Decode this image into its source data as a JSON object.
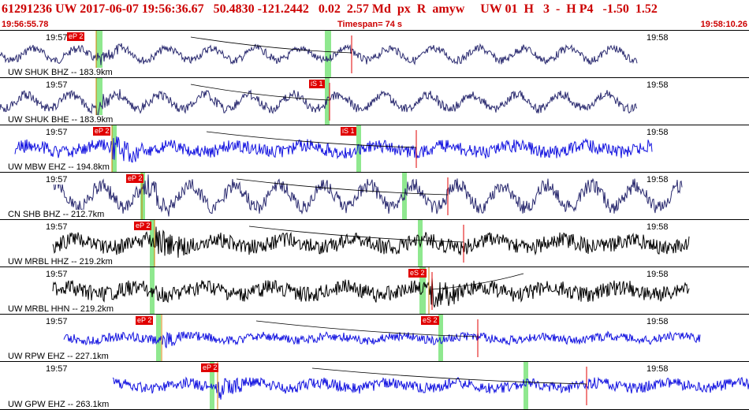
{
  "header": {
    "title": "61291236 UW 2017-06-07 19:56:36.67   50.4830 -121.2442   0.02  2.57 Md  px  R  amyw     UW 01  H   3  -  H P4   -1.50  1.52",
    "start_time": "19:56:55.78",
    "timespan": "Timespan=  74 s",
    "end_time": "19:58:10.26"
  },
  "traces": [
    {
      "station_label": "UW SHUK BHZ -- 183.9km",
      "color": "#2b2b70",
      "style": "smooth",
      "start": 0.0,
      "end": 0.85,
      "amp": 11,
      "ticks": [
        "19:57",
        "19:58"
      ],
      "picks": [
        {
          "label": "eP 2"
        }
      ]
    },
    {
      "station_label": "UW SHUK BHE -- 183.9km",
      "color": "#2b2b70",
      "style": "smooth",
      "start": 0.0,
      "end": 0.85,
      "amp": 13,
      "ticks": [
        "19:57",
        "19:58"
      ],
      "picks": [
        {
          "label": "iS 1"
        }
      ]
    },
    {
      "station_label": "UW MBW EHZ -- 194.8km",
      "color": "#1414e0",
      "style": "noisy",
      "start": 0.02,
      "end": 0.87,
      "amp": 12,
      "ticks": [
        "19:57",
        "19:58"
      ],
      "picks": [
        {
          "label": "eP 2"
        },
        {
          "label": "iS 1"
        }
      ]
    },
    {
      "station_label": "CN SHB BHZ -- 212.7km",
      "color": "#2b2b70",
      "style": "smooth",
      "start": 0.07,
      "end": 0.91,
      "amp": 20,
      "ticks": [
        "19:57",
        "19:58"
      ],
      "picks": [
        {
          "label": "eP 2"
        }
      ]
    },
    {
      "station_label": "UW MRBL HHZ -- 219.2km",
      "color": "#000000",
      "style": "noisy",
      "start": 0.07,
      "end": 0.92,
      "amp": 14,
      "ticks": [
        "19:57",
        "19:58"
      ],
      "picks": [
        {
          "label": "eP 2"
        }
      ]
    },
    {
      "station_label": "UW MRBL HHN -- 219.2km",
      "color": "#000000",
      "style": "noisy",
      "start": 0.07,
      "end": 0.92,
      "amp": 14,
      "ticks": [
        "19:57",
        "19:58"
      ],
      "picks": [
        {
          "label": "eS 2"
        }
      ]
    },
    {
      "station_label": "UW RPW EHZ -- 227.1km",
      "color": "#1414e0",
      "style": "noisy",
      "start": 0.085,
      "end": 0.935,
      "amp": 8,
      "ticks": [
        "19:57",
        "19:58"
      ],
      "picks": [
        {
          "label": "eP 2"
        },
        {
          "label": "eS 2"
        }
      ]
    },
    {
      "station_label": "UW GPW EHZ -- 263.1km",
      "color": "#1414e0",
      "style": "noisy",
      "start": 0.15,
      "end": 1.0,
      "amp": 10,
      "ticks": [
        "19:57",
        "19:58"
      ],
      "picks": [
        {
          "label": "eP 2"
        }
      ]
    }
  ]
}
